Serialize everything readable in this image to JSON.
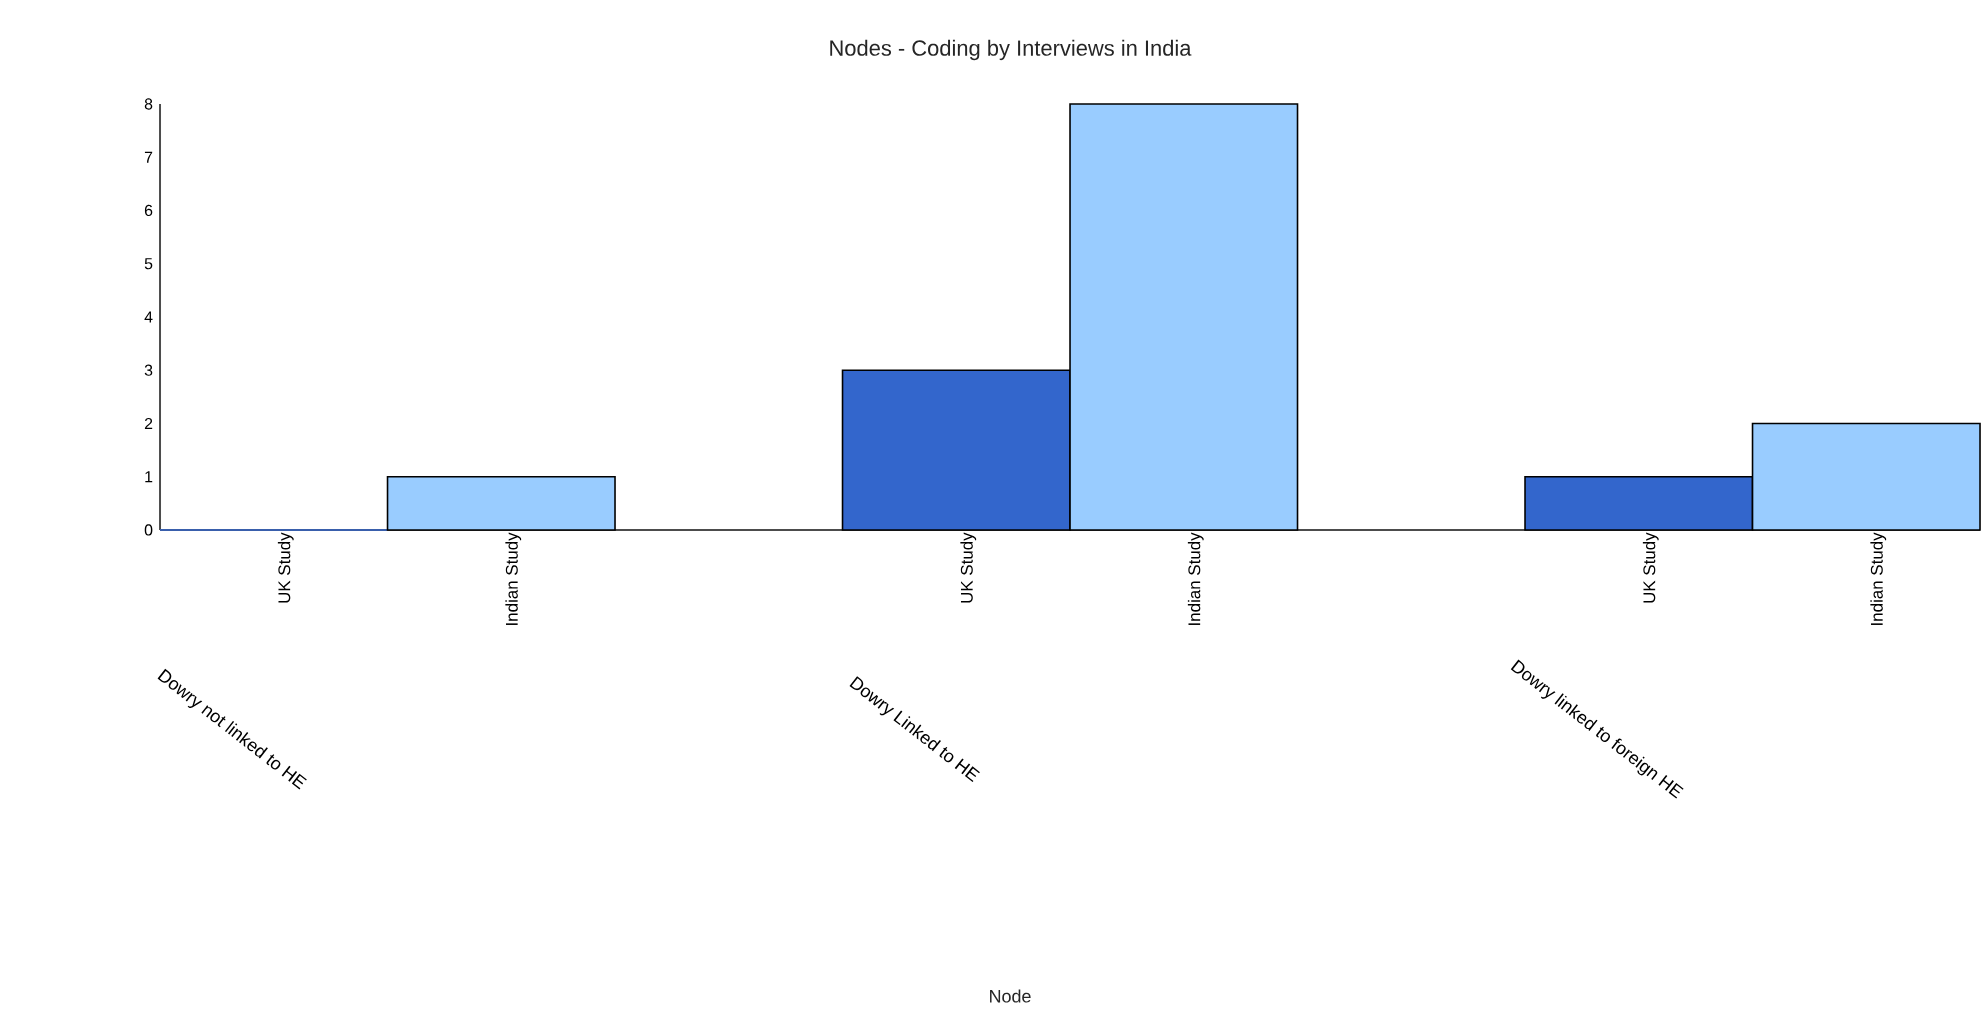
{
  "chart_data": {
    "type": "bar",
    "title": "Nodes - Coding by Interviews in India",
    "annotations": [
      "Node"
    ],
    "categories": [
      "Dowry not linked to HE",
      "Dowry Linked to HE",
      "Dowry linked to foreign HE"
    ],
    "series": [
      {
        "name": "UK Study",
        "color": "#3366cc",
        "values": [
          0,
          3,
          1
        ]
      },
      {
        "name": "Indian Study",
        "color": "#99ccff",
        "values": [
          1,
          8,
          2
        ]
      }
    ],
    "ylim": [
      0,
      8
    ],
    "yticks": [
      0,
      1,
      2,
      3,
      4,
      5,
      6,
      7,
      8
    ]
  }
}
